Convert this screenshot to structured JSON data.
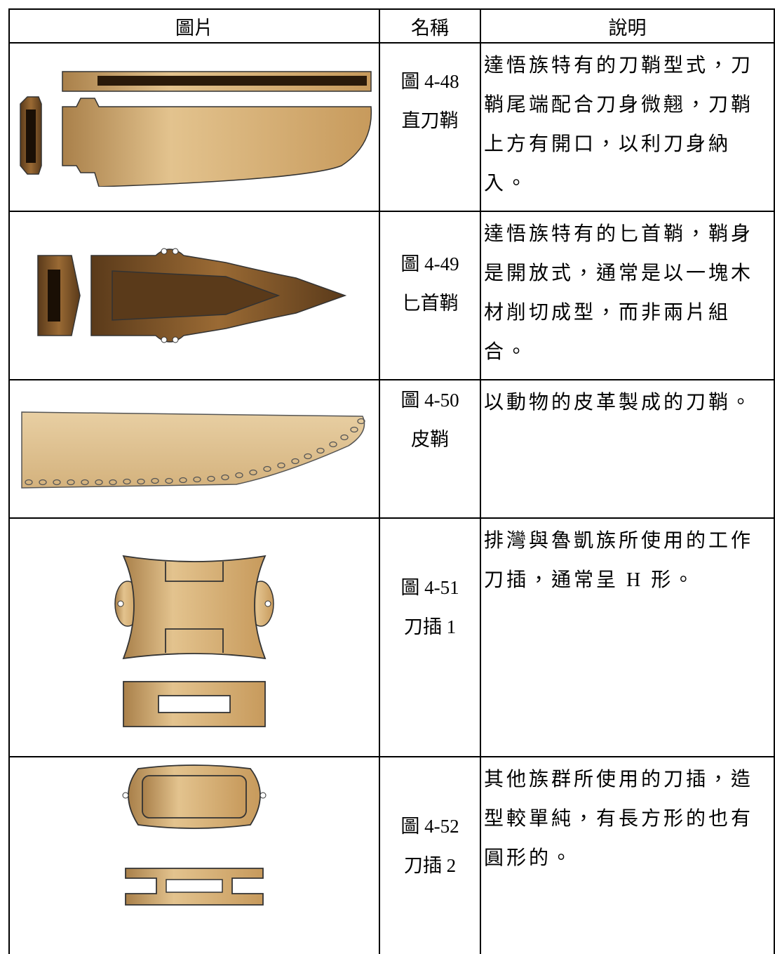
{
  "table": {
    "header": [
      "圖片",
      "名稱",
      "說明"
    ],
    "rows": [
      {
        "name": [
          "圖 4-48",
          "直刀鞘"
        ],
        "description": "達悟族特有的刀鞘型式，刀鞘尾端配合刀身微翹，刀鞘上方有開口，以利刀身納入。"
      },
      {
        "name": [
          "圖 4-49",
          "匕首鞘"
        ],
        "description": "達悟族特有的匕首鞘，鞘身是開放式，通常是以一塊木材削切成型，而非兩片組合。"
      },
      {
        "name": [
          "圖 4-50",
          "皮鞘"
        ],
        "description": "以動物的皮革製成的刀鞘。"
      },
      {
        "name": [
          "圖 4-51",
          "刀插 1"
        ],
        "description": "排灣與魯凱族所使用的工作刀插，通常呈 H 形。"
      },
      {
        "name": [
          "圖 4-52",
          "刀插 2"
        ],
        "description": "其他族群所使用的刀插，造型較單純，有長方形的也有圓形的。"
      }
    ]
  }
}
